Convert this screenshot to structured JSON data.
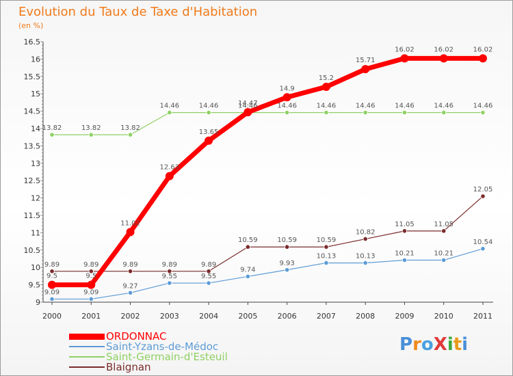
{
  "header": {
    "title": "Evolution du Taux de Taxe d'Habitation",
    "subtitle": "(en %)"
  },
  "colors": {
    "title": "#f07a1a",
    "ORDONNAC": "#ff0000",
    "Saint-Yzans-de-Médoc": "#5b9bd5",
    "Saint-Germain-d'Esteuil": "#8fd163",
    "Blaignan": "#7a2b2b"
  },
  "logo": {
    "text": "ProXiti",
    "letters": [
      "P",
      "r",
      "o",
      "X",
      "i",
      "t",
      "i"
    ],
    "colors": [
      "#4a8fd8",
      "#f08a1c",
      "#4aa0e0",
      "#e03a3a",
      "#3aaa3a",
      "#e89a1a",
      "#4a8fd8"
    ]
  },
  "chart_data": {
    "type": "line",
    "title": "Evolution du Taux de Taxe d'Habitation",
    "ylabel": "(en %)",
    "xlabel": "",
    "x": [
      "2000",
      "2001",
      "2002",
      "2003",
      "2004",
      "2005",
      "2006",
      "2007",
      "2008",
      "2009",
      "2010",
      "2011"
    ],
    "ylim": [
      9,
      16.5
    ],
    "yticks": [
      "9",
      "9.5",
      "10",
      "10.5",
      "11",
      "11.5",
      "12",
      "12.5",
      "13",
      "13.5",
      "14",
      "14.5",
      "15",
      "15.5",
      "16",
      "16.5"
    ],
    "grid": false,
    "legend_position": "bottom-left",
    "series": [
      {
        "name": "ORDONNAC",
        "values": [
          9.5,
          9.5,
          11.02,
          12.63,
          13.65,
          14.47,
          14.9,
          15.2,
          15.71,
          16.02,
          16.02,
          16.02
        ],
        "labels": [
          "9.5",
          "9.5",
          "11.02",
          "12.63",
          "13.65",
          "14.47",
          "14.9",
          "15.2",
          "15.71",
          "16.02",
          "16.02",
          "16.02"
        ]
      },
      {
        "name": "Saint-Yzans-de-Médoc",
        "values": [
          9.09,
          9.09,
          9.27,
          9.55,
          9.55,
          9.74,
          9.93,
          10.13,
          10.13,
          10.21,
          10.21,
          10.54
        ],
        "labels": [
          "9.09",
          "9.09",
          "9.27",
          "9.55",
          "9.55",
          "9.74",
          "9.93",
          "10.13",
          "10.13",
          "10.21",
          "10.21",
          "10.54"
        ]
      },
      {
        "name": "Saint-Germain-d'Esteuil",
        "values": [
          13.82,
          13.82,
          13.82,
          14.46,
          14.46,
          14.46,
          14.46,
          14.46,
          14.46,
          14.46,
          14.46,
          14.46
        ],
        "labels": [
          "13.82",
          "13.82",
          "13.82",
          "14.46",
          "14.46",
          "14.46",
          "14.46",
          "14.46",
          "14.46",
          "14.46",
          "14.46",
          "14.46"
        ]
      },
      {
        "name": "Blaignan",
        "values": [
          9.89,
          9.89,
          9.89,
          9.89,
          9.89,
          10.59,
          10.59,
          10.59,
          10.82,
          11.05,
          11.05,
          12.05
        ],
        "labels": [
          "9.89",
          "9.89",
          "9.89",
          "9.89",
          "9.89",
          "10.59",
          "10.59",
          "10.59",
          "10.82",
          "11.05",
          "11.05",
          "12.05"
        ]
      }
    ]
  }
}
